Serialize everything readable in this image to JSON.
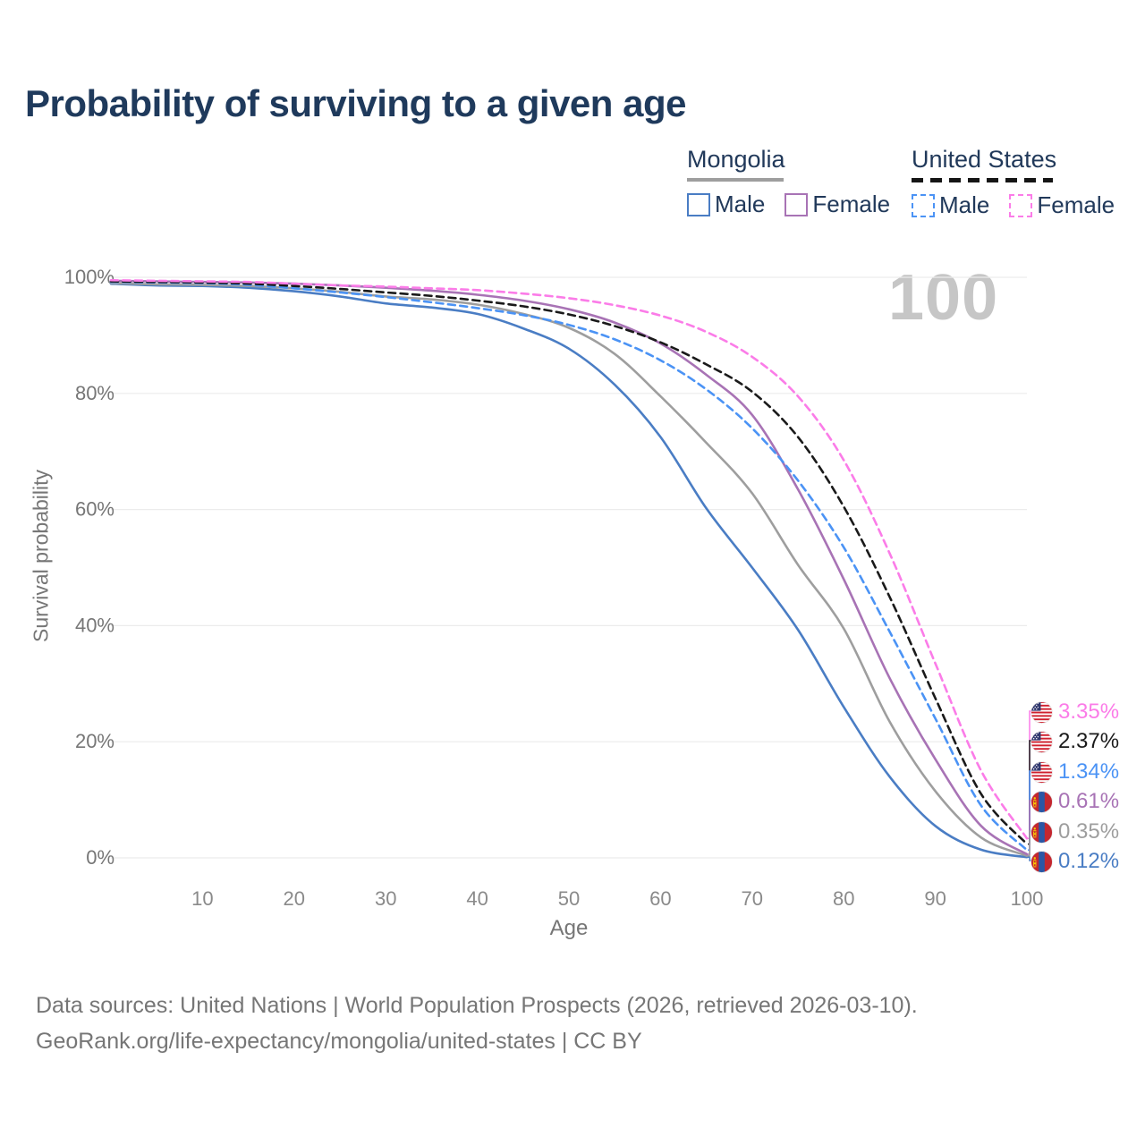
{
  "header": {
    "title": "Probability of surviving to a given age"
  },
  "legend": {
    "groups": [
      {
        "name": "Mongolia",
        "line_style": "solid",
        "line_color": "#9e9e9e",
        "items": [
          {
            "label": "Male",
            "color": "#4a7dc4",
            "dashed": false
          },
          {
            "label": "Female",
            "color": "#a873b5",
            "dashed": false
          }
        ]
      },
      {
        "name": "United States",
        "line_style": "dashed",
        "line_color": "#1a1a1a",
        "items": [
          {
            "label": "Male",
            "color": "#4b93f5",
            "dashed": true
          },
          {
            "label": "Female",
            "color": "#fb7ce8",
            "dashed": true
          }
        ]
      }
    ]
  },
  "chart_data": {
    "type": "line",
    "title": "Probability of surviving to a given age",
    "xlabel": "Age",
    "ylabel": "Survival probability",
    "xlim": [
      0,
      100
    ],
    "ylim": [
      0,
      100
    ],
    "grid": "horizontal",
    "watermark": "100",
    "x_ticks": [
      10,
      20,
      30,
      40,
      50,
      60,
      70,
      80,
      90,
      100
    ],
    "y_ticks": [
      {
        "value": 100,
        "label": "100%"
      },
      {
        "value": 80,
        "label": "80%"
      },
      {
        "value": 60,
        "label": "60%"
      },
      {
        "value": 40,
        "label": "40%"
      },
      {
        "value": 20,
        "label": "20%"
      },
      {
        "value": 0,
        "label": "0%"
      }
    ],
    "ages": [
      0,
      5,
      10,
      15,
      20,
      25,
      30,
      35,
      40,
      45,
      50,
      55,
      60,
      65,
      70,
      75,
      80,
      85,
      90,
      95,
      100
    ],
    "series": [
      {
        "name": "Mongolia — Male",
        "country": "Mongolia",
        "sex": "Male",
        "color": "#4a7dc4",
        "dashed": false,
        "values": [
          98.9,
          98.6,
          98.5,
          98.2,
          97.6,
          96.7,
          95.5,
          94.8,
          93.7,
          91.2,
          87.7,
          81.5,
          72.5,
          60.2,
          50.0,
          39.3,
          26.0,
          14.0,
          5.5,
          1.4,
          0.12
        ]
      },
      {
        "name": "Mongolia — Both sexes",
        "country": "Mongolia",
        "sex": "Both",
        "color": "#9e9e9e",
        "dashed": false,
        "values": [
          99.0,
          98.8,
          98.7,
          98.5,
          98.1,
          97.5,
          96.7,
          96.2,
          95.3,
          93.7,
          91.3,
          86.8,
          79.5,
          71.5,
          62.8,
          50.5,
          39.5,
          23.5,
          11.5,
          3.5,
          0.35
        ]
      },
      {
        "name": "Mongolia — Female",
        "country": "Mongolia",
        "sex": "Female",
        "color": "#a873b5",
        "dashed": false,
        "values": [
          99.4,
          99.3,
          99.2,
          99.1,
          98.9,
          98.6,
          98.2,
          97.7,
          97.0,
          96.0,
          94.5,
          92.2,
          88.6,
          83.2,
          76.3,
          63.5,
          48.0,
          31.0,
          17.0,
          5.5,
          0.61
        ]
      },
      {
        "name": "United States — Male",
        "country": "United States",
        "sex": "Male",
        "color": "#4b93f5",
        "dashed": true,
        "values": [
          99.2,
          99.1,
          99.0,
          98.7,
          98.1,
          97.4,
          96.6,
          95.7,
          94.7,
          93.5,
          91.8,
          89.3,
          85.7,
          80.7,
          74.0,
          65.0,
          53.5,
          39.0,
          24.0,
          9.0,
          1.34
        ]
      },
      {
        "name": "United States — Both sexes",
        "country": "United States",
        "sex": "Both",
        "color": "#1a1a1a",
        "dashed": true,
        "values": [
          99.3,
          99.2,
          99.1,
          98.9,
          98.5,
          98.0,
          97.4,
          96.8,
          96.0,
          95.0,
          93.6,
          91.6,
          88.8,
          85.0,
          80.3,
          72.5,
          60.5,
          45.0,
          27.5,
          11.0,
          2.37
        ]
      },
      {
        "name": "United States — Female",
        "country": "United States",
        "sex": "Female",
        "color": "#fb7ce8",
        "dashed": true,
        "values": [
          99.5,
          99.4,
          99.3,
          99.2,
          98.9,
          98.6,
          98.4,
          98.1,
          97.8,
          97.2,
          96.4,
          95.2,
          93.4,
          90.6,
          86.3,
          79.5,
          68.5,
          52.5,
          33.5,
          15.0,
          3.35
        ]
      }
    ],
    "end_labels": [
      {
        "text": "3.35%",
        "value": 3.35,
        "flag": "us",
        "color": "#fb7ce8"
      },
      {
        "text": "2.37%",
        "value": 2.37,
        "flag": "us",
        "color": "#1a1a1a"
      },
      {
        "text": "1.34%",
        "value": 1.34,
        "flag": "us",
        "color": "#4b93f5"
      },
      {
        "text": "0.61%",
        "value": 0.61,
        "flag": "mn",
        "color": "#a873b5"
      },
      {
        "text": "0.35%",
        "value": 0.35,
        "flag": "mn",
        "color": "#9e9e9e"
      },
      {
        "text": "0.12%",
        "value": 0.12,
        "flag": "mn",
        "color": "#4a7dc4"
      }
    ]
  },
  "footer": {
    "line1": "Data sources: United Nations | World Population Prospects (2026, retrieved 2026-03-10).",
    "line2": "GeoRank.org/life-expectancy/mongolia/united-states | CC BY"
  }
}
